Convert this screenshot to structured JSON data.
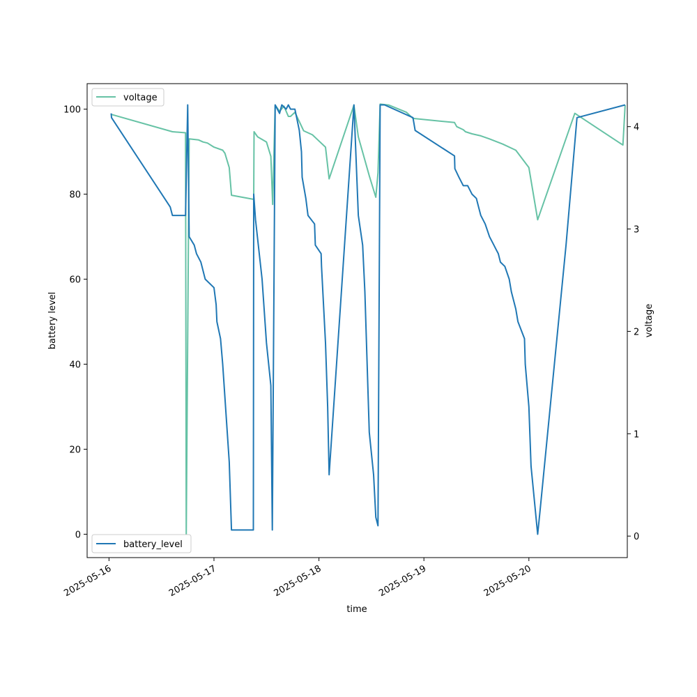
{
  "chart_data": {
    "type": "line",
    "xlabel": "time",
    "ylabel_left": "battery level",
    "ylabel_right": "voltage",
    "x_ticks": [
      "2025-05-16",
      "2025-05-17",
      "2025-05-18",
      "2025-05-19",
      "2025-05-20"
    ],
    "y_left_ticks": [
      0,
      20,
      40,
      60,
      80,
      100
    ],
    "y_right_ticks": [
      0,
      1,
      2,
      3,
      4
    ],
    "xlim": [
      "2025-05-15 19:00",
      "2025-05-20 22:30"
    ],
    "ylim_left": [
      -5.5,
      106
    ],
    "ylim_right": [
      -0.21,
      4.42
    ],
    "grid": false,
    "series": [
      {
        "name": "battery_level",
        "axis": "left",
        "color": "#1f77b4",
        "legend": "bottom-left",
        "points": [
          [
            "2025-05-16 00:30",
            99
          ],
          [
            "2025-05-16 00:35",
            98
          ],
          [
            "2025-05-16 14:00",
            77
          ],
          [
            "2025-05-16 14:30",
            75
          ],
          [
            "2025-05-16 17:30",
            75
          ],
          [
            "2025-05-16 18:00",
            101
          ],
          [
            "2025-05-16 18:20",
            70
          ],
          [
            "2025-05-16 19:30",
            68
          ],
          [
            "2025-05-16 20:00",
            66
          ],
          [
            "2025-05-16 21:00",
            64
          ],
          [
            "2025-05-16 22:00",
            60
          ],
          [
            "2025-05-17 00:00",
            58
          ],
          [
            "2025-05-17 00:30",
            54
          ],
          [
            "2025-05-17 00:40",
            50
          ],
          [
            "2025-05-17 01:30",
            46
          ],
          [
            "2025-05-17 02:00",
            40
          ],
          [
            "2025-05-17 03:30",
            17
          ],
          [
            "2025-05-17 04:00",
            1
          ],
          [
            "2025-05-17 09:00",
            1
          ],
          [
            "2025-05-17 09:05",
            80
          ],
          [
            "2025-05-17 09:30",
            74
          ],
          [
            "2025-05-17 11:00",
            60
          ],
          [
            "2025-05-17 12:00",
            45
          ],
          [
            "2025-05-17 13:00",
            35
          ],
          [
            "2025-05-17 13:20",
            1
          ],
          [
            "2025-05-17 14:00",
            101
          ],
          [
            "2025-05-17 15:00",
            99
          ],
          [
            "2025-05-17 15:30",
            101
          ],
          [
            "2025-05-17 16:30",
            100
          ],
          [
            "2025-05-17 17:00",
            101
          ],
          [
            "2025-05-17 17:30",
            100
          ],
          [
            "2025-05-17 18:30",
            100
          ],
          [
            "2025-05-17 19:30",
            95
          ],
          [
            "2025-05-17 20:00",
            90
          ],
          [
            "2025-05-17 20:10",
            84
          ],
          [
            "2025-05-17 21:00",
            79
          ],
          [
            "2025-05-17 21:30",
            75
          ],
          [
            "2025-05-17 23:00",
            73
          ],
          [
            "2025-05-17 23:10",
            68
          ],
          [
            "2025-05-18 00:30",
            66
          ],
          [
            "2025-05-18 00:35",
            63
          ],
          [
            "2025-05-18 01:30",
            45
          ],
          [
            "2025-05-18 02:00",
            30
          ],
          [
            "2025-05-18 02:20",
            14
          ],
          [
            "2025-05-18 08:00",
            101
          ],
          [
            "2025-05-18 09:00",
            75
          ],
          [
            "2025-05-18 10:00",
            68
          ],
          [
            "2025-05-18 10:30",
            57
          ],
          [
            "2025-05-18 11:30",
            24
          ],
          [
            "2025-05-18 12:30",
            14
          ],
          [
            "2025-05-18 13:00",
            4
          ],
          [
            "2025-05-18 13:30",
            2
          ],
          [
            "2025-05-18 14:00",
            101
          ],
          [
            "2025-05-18 15:00",
            101
          ],
          [
            "2025-05-18 21:30",
            98
          ],
          [
            "2025-05-18 22:00",
            95
          ],
          [
            "2025-05-19 07:00",
            89
          ],
          [
            "2025-05-19 07:05",
            86
          ],
          [
            "2025-05-19 08:00",
            84
          ],
          [
            "2025-05-19 09:00",
            82
          ],
          [
            "2025-05-19 10:00",
            82
          ],
          [
            "2025-05-19 11:00",
            80
          ],
          [
            "2025-05-19 12:00",
            79
          ],
          [
            "2025-05-19 12:30",
            77
          ],
          [
            "2025-05-19 13:00",
            75
          ],
          [
            "2025-05-19 14:00",
            73
          ],
          [
            "2025-05-19 15:00",
            70
          ],
          [
            "2025-05-19 16:00",
            68
          ],
          [
            "2025-05-19 16:30",
            67
          ],
          [
            "2025-05-19 17:00",
            66
          ],
          [
            "2025-05-19 17:30",
            64
          ],
          [
            "2025-05-19 18:30",
            63
          ],
          [
            "2025-05-19 19:30",
            60
          ],
          [
            "2025-05-19 20:00",
            57
          ],
          [
            "2025-05-19 21:00",
            53
          ],
          [
            "2025-05-19 21:30",
            50
          ],
          [
            "2025-05-19 23:00",
            46
          ],
          [
            "2025-05-19 23:10",
            40
          ],
          [
            "2025-05-20 00:00",
            30
          ],
          [
            "2025-05-20 00:30",
            16
          ],
          [
            "2025-05-20 02:00",
            0
          ],
          [
            "2025-05-20 02:30",
            5
          ],
          [
            "2025-05-20 08:30",
            68
          ],
          [
            "2025-05-20 11:00",
            98
          ],
          [
            "2025-05-20 22:00",
            101
          ]
        ]
      },
      {
        "name": "voltage",
        "axis": "right",
        "color": "#66c2a5",
        "legend": "top-left",
        "points": [
          [
            "2025-05-16 00:30",
            4.12
          ],
          [
            "2025-05-16 14:30",
            3.95
          ],
          [
            "2025-05-16 17:30",
            3.94
          ],
          [
            "2025-05-16 17:40",
            0.0
          ],
          [
            "2025-05-16 18:20",
            3.88
          ],
          [
            "2025-05-16 20:30",
            3.87
          ],
          [
            "2025-05-16 21:30",
            3.85
          ],
          [
            "2025-05-16 22:30",
            3.84
          ],
          [
            "2025-05-17 00:00",
            3.8
          ],
          [
            "2025-05-17 02:00",
            3.77
          ],
          [
            "2025-05-17 02:30",
            3.74
          ],
          [
            "2025-05-17 03:30",
            3.6
          ],
          [
            "2025-05-17 04:00",
            3.33
          ],
          [
            "2025-05-17 09:05",
            3.29
          ],
          [
            "2025-05-17 09:10",
            3.95
          ],
          [
            "2025-05-17 10:00",
            3.9
          ],
          [
            "2025-05-17 12:00",
            3.85
          ],
          [
            "2025-05-17 13:00",
            3.71
          ],
          [
            "2025-05-17 13:25",
            3.24
          ],
          [
            "2025-05-17 14:00",
            4.21
          ],
          [
            "2025-05-17 15:00",
            4.15
          ],
          [
            "2025-05-17 16:00",
            4.2
          ],
          [
            "2025-05-17 17:00",
            4.1
          ],
          [
            "2025-05-17 17:30",
            4.1
          ],
          [
            "2025-05-17 18:30",
            4.14
          ],
          [
            "2025-05-17 19:30",
            4.05
          ],
          [
            "2025-05-17 20:30",
            3.96
          ],
          [
            "2025-05-17 22:30",
            3.92
          ],
          [
            "2025-05-17 23:30",
            3.88
          ],
          [
            "2025-05-18 01:30",
            3.8
          ],
          [
            "2025-05-18 02:20",
            3.49
          ],
          [
            "2025-05-18 08:00",
            4.21
          ],
          [
            "2025-05-18 09:00",
            3.9
          ],
          [
            "2025-05-18 10:00",
            3.75
          ],
          [
            "2025-05-18 11:30",
            3.52
          ],
          [
            "2025-05-18 13:00",
            3.31
          ],
          [
            "2025-05-18 13:30",
            3.55
          ],
          [
            "2025-05-18 14:00",
            4.22
          ],
          [
            "2025-05-18 16:00",
            4.21
          ],
          [
            "2025-05-18 20:00",
            4.14
          ],
          [
            "2025-05-18 21:30",
            4.08
          ],
          [
            "2025-05-19 07:00",
            4.04
          ],
          [
            "2025-05-19 07:30",
            4.0
          ],
          [
            "2025-05-19 09:00",
            3.97
          ],
          [
            "2025-05-19 09:30",
            3.95
          ],
          [
            "2025-05-19 11:00",
            3.93
          ],
          [
            "2025-05-19 13:00",
            3.91
          ],
          [
            "2025-05-19 15:00",
            3.88
          ],
          [
            "2025-05-19 18:00",
            3.83
          ],
          [
            "2025-05-19 21:00",
            3.77
          ],
          [
            "2025-05-20 00:00",
            3.6
          ],
          [
            "2025-05-20 02:00",
            3.09
          ],
          [
            "2025-05-20 10:30",
            4.13
          ],
          [
            "2025-05-20 21:30",
            3.82
          ],
          [
            "2025-05-20 22:00",
            4.21
          ]
        ]
      }
    ]
  }
}
